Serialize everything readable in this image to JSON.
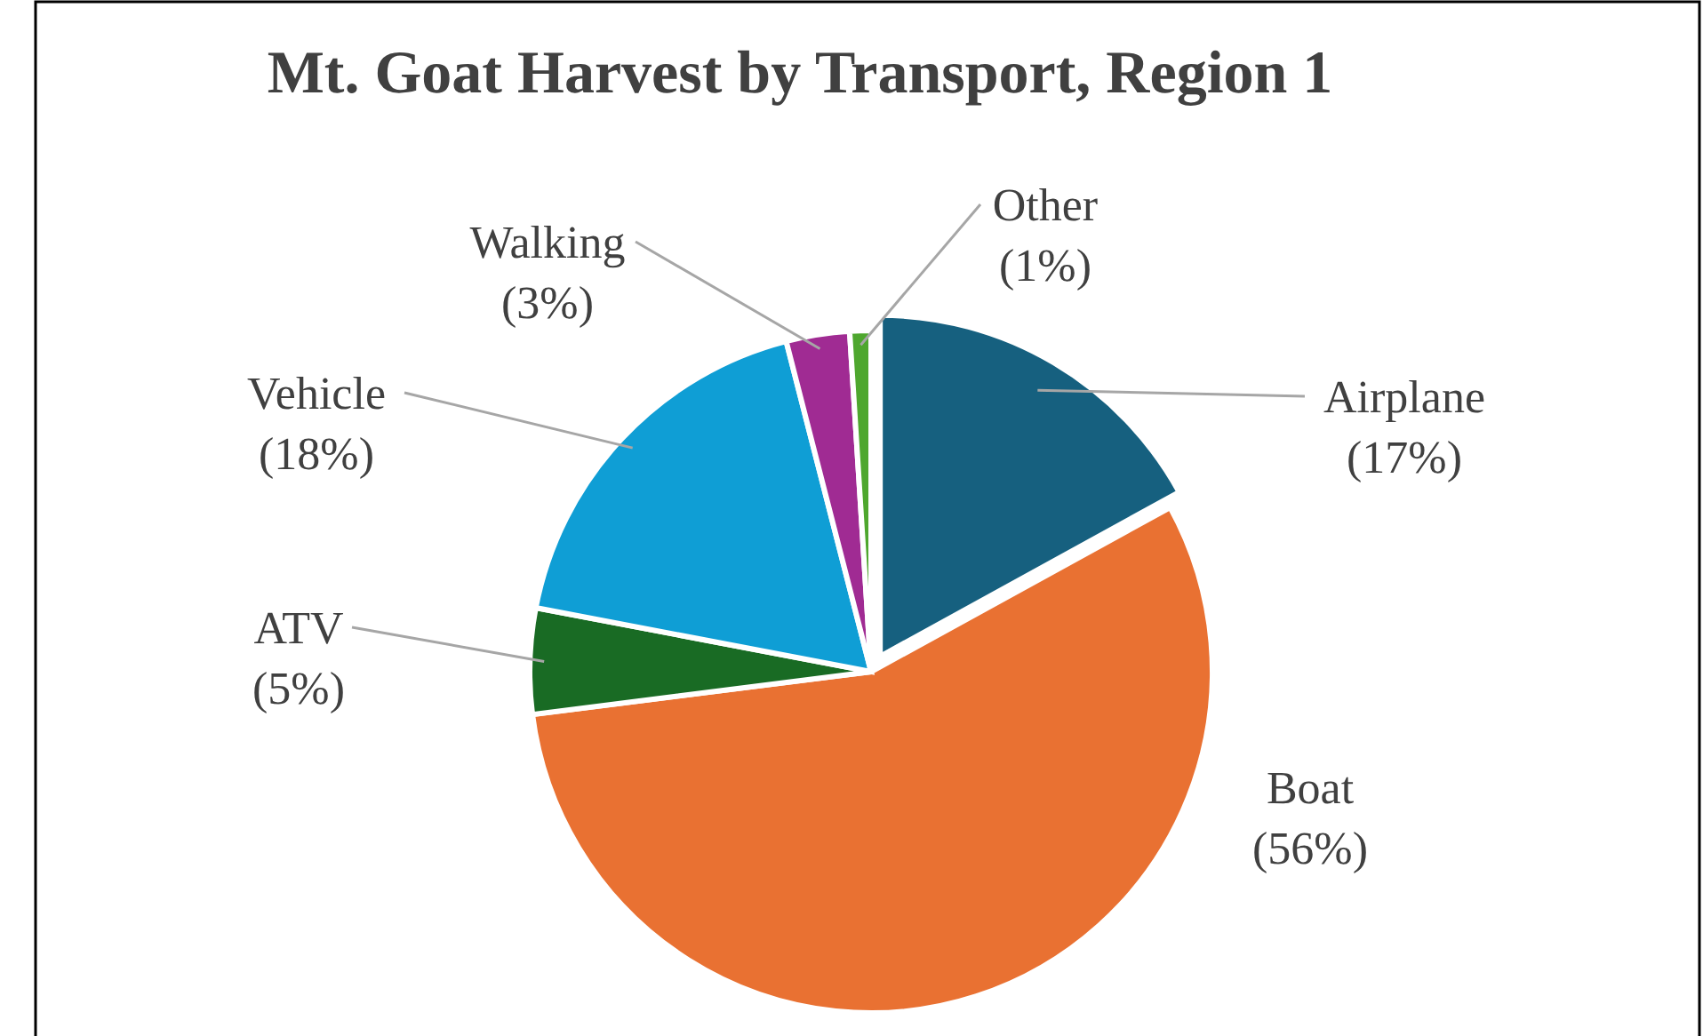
{
  "chart_data": {
    "type": "pie",
    "title": "Mt. Goat Harvest by Transport, Region 1",
    "categories": [
      "Airplane",
      "Boat",
      "ATV",
      "Vehicle",
      "Walking",
      "Other"
    ],
    "values": [
      17,
      56,
      5,
      18,
      3,
      1
    ],
    "value_labels": [
      "(17%)",
      "(56%)",
      "(5%)",
      "(18%)",
      "(3%)",
      "(1%)"
    ],
    "colors": [
      "#16607f",
      "#e97132",
      "#196b24",
      "#0f9ed5",
      "#a02b93",
      "#4ea72e"
    ],
    "legend": false
  }
}
